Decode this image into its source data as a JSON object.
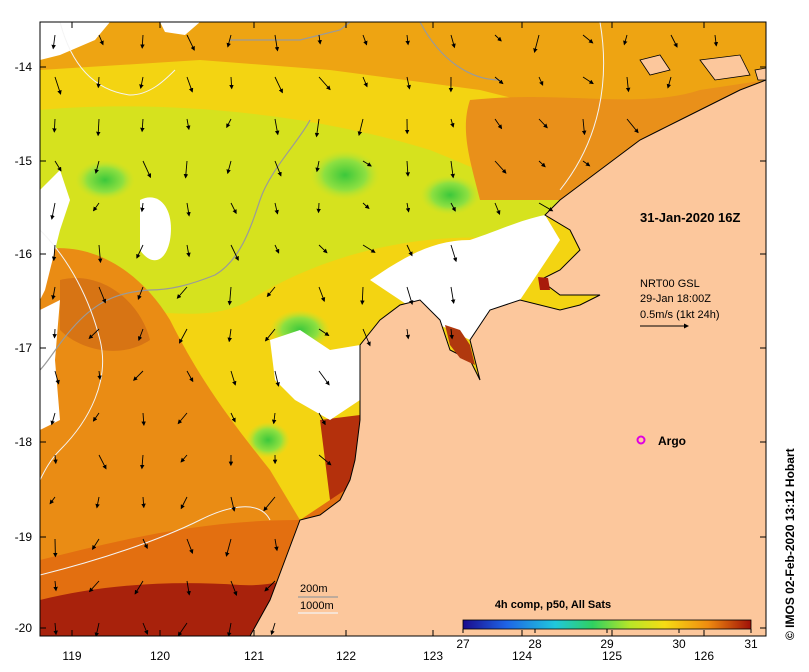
{
  "map": {
    "time_label": "31-Jan-2020 16Z",
    "currents": {
      "name": "NRT00 GSL",
      "time": "29-Jan 18:00Z",
      "scale": "0.5m/s (1kt 24h)"
    },
    "argo_label": "Argo",
    "isobaths": [
      "200m",
      "1000m"
    ],
    "colorbar": {
      "title": "4h comp, p50, All Sats",
      "ticks": [
        "27",
        "28",
        "29",
        "30",
        "31"
      ],
      "range": [
        27,
        31
      ]
    },
    "x_ticks": [
      "119",
      "120",
      "121",
      "122",
      "123",
      "124",
      "125",
      "126"
    ],
    "y_ticks": [
      "-14",
      "-15",
      "-16",
      "-17",
      "-18",
      "-19",
      "-20"
    ],
    "credit": "© IMOS 02-Feb-2020 13:12 Hobart",
    "colors": {
      "land": "#fcc79c",
      "warm": "#a81a0a",
      "orange": "#e8780f",
      "yellow": "#f5cc0f",
      "green": "#6fd83a"
    }
  }
}
